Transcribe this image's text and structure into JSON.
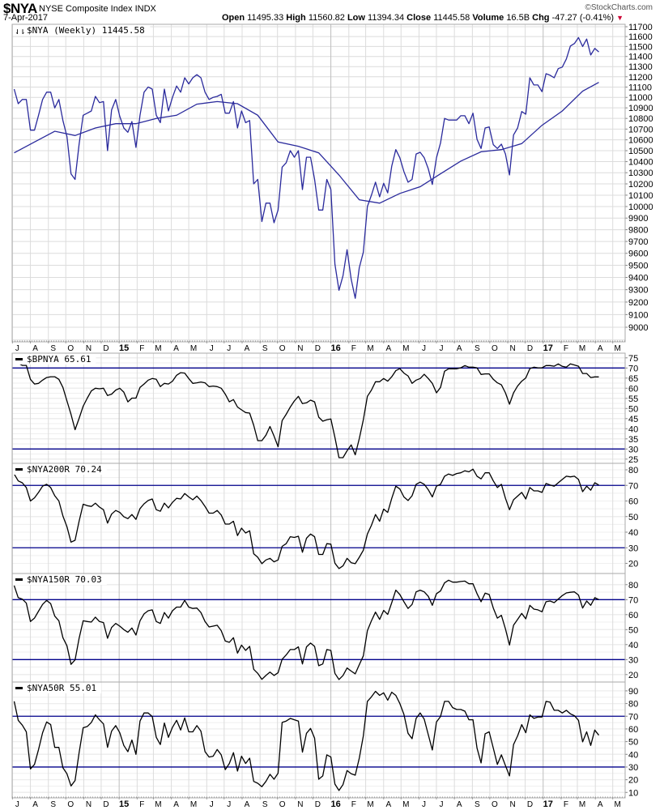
{
  "header": {
    "symbol": "$NYA",
    "name": "NYSE Composite Index  INDX",
    "watermark": "©StockCharts.com",
    "date": "7-Apr-2017",
    "quote": {
      "open_label": "Open",
      "open": "11495.33",
      "high_label": "High",
      "high": "11560.82",
      "low_label": "Low",
      "low": "11394.34",
      "close_label": "Close",
      "close": "11445.58",
      "volume_label": "Volume",
      "volume": "16.5B",
      "chg_label": "Chg",
      "chg": "-47.27 (-0.41%)",
      "chg_icon": "down-triangle-icon"
    }
  },
  "x_axis": {
    "frequency": "weekly",
    "first_week": "2014-07-04",
    "start_month": "2014-07",
    "month_labels": [
      "J",
      "A",
      "S",
      "O",
      "N",
      "D",
      "15",
      "F",
      "M",
      "A",
      "M",
      "J",
      "J",
      "A",
      "S",
      "O",
      "N",
      "D",
      "16",
      "F",
      "M",
      "A",
      "M",
      "J",
      "J",
      "A",
      "S",
      "O",
      "N",
      "D",
      "17",
      "F",
      "M",
      "A",
      "M"
    ]
  },
  "colors": {
    "price": "#2a2a9c",
    "ma": "#2a2a9c",
    "indicator": "#000000",
    "reference": "#00008b",
    "up_bar": "#000000",
    "down_bar": "#cc0033"
  },
  "chart_data": [
    {
      "type": "line",
      "legend": "$NYA (Weekly) 11445.58",
      "scale": "log",
      "ylim": [
        9000,
        11700
      ],
      "yticks": [
        "11700",
        "11600",
        "11500",
        "11400",
        "11300",
        "11200",
        "11100",
        "11000",
        "10900",
        "10800",
        "10700",
        "10600",
        "10500",
        "10400",
        "10300",
        "10200",
        "10100",
        "10000",
        "9900",
        "9800",
        "9700",
        "9600",
        "9500",
        "9400",
        "9300",
        "9200",
        "9100",
        "9000"
      ],
      "grid": true,
      "close": [
        11080,
        10940,
        10980,
        10980,
        10690,
        10690,
        10830,
        10980,
        11050,
        11050,
        10900,
        10980,
        10780,
        10630,
        10290,
        10240,
        10560,
        10830,
        10850,
        10870,
        11010,
        10950,
        10960,
        10500,
        10880,
        10980,
        10820,
        10710,
        10670,
        10770,
        10530,
        10830,
        11050,
        11100,
        11080,
        10830,
        10760,
        11080,
        10870,
        11000,
        11110,
        11050,
        11190,
        11130,
        11190,
        11220,
        11190,
        11050,
        10980,
        11000,
        11010,
        11030,
        10850,
        10850,
        10960,
        10710,
        10870,
        10760,
        10780,
        10200,
        10240,
        9870,
        10030,
        10030,
        9860,
        9970,
        10350,
        10390,
        10500,
        10440,
        10500,
        10150,
        10440,
        10440,
        10240,
        9970,
        9970,
        10240,
        10150,
        9510,
        9295,
        9415,
        9630,
        9385,
        9230,
        9480,
        9610,
        10000,
        10100,
        10215,
        10085,
        10205,
        10120,
        10360,
        10510,
        10435,
        10310,
        10215,
        10240,
        10470,
        10485,
        10435,
        10335,
        10195,
        10435,
        10570,
        10800,
        10785,
        10785,
        10785,
        10825,
        10825,
        10750,
        10850,
        10605,
        10520,
        10710,
        10720,
        10555,
        10520,
        10560,
        10470,
        10280,
        10645,
        10710,
        10865,
        10840,
        11190,
        11120,
        11120,
        11055,
        11230,
        11215,
        11190,
        11280,
        11295,
        11375,
        11505,
        11530,
        11590,
        11500,
        11575,
        11415,
        11480,
        11445.58
      ],
      "moving_average": [
        [
          "2014-07-04",
          10480
        ],
        [
          "2014-08-08",
          10580
        ],
        [
          "2014-09-12",
          10680
        ],
        [
          "2014-10-17",
          10640
        ],
        [
          "2014-11-21",
          10710
        ],
        [
          "2014-12-26",
          10750
        ],
        [
          "2015-01-30",
          10750
        ],
        [
          "2015-03-06",
          10800
        ],
        [
          "2015-04-10",
          10830
        ],
        [
          "2015-05-15",
          10935
        ],
        [
          "2015-06-19",
          10960
        ],
        [
          "2015-07-24",
          10940
        ],
        [
          "2015-08-28",
          10830
        ],
        [
          "2015-10-02",
          10580
        ],
        [
          "2015-11-06",
          10540
        ],
        [
          "2015-12-11",
          10480
        ],
        [
          "2016-01-15",
          10280
        ],
        [
          "2016-02-19",
          10060
        ],
        [
          "2016-03-25",
          10030
        ],
        [
          "2016-04-29",
          10115
        ],
        [
          "2016-06-03",
          10175
        ],
        [
          "2016-07-08",
          10290
        ],
        [
          "2016-08-12",
          10405
        ],
        [
          "2016-09-16",
          10490
        ],
        [
          "2016-10-21",
          10510
        ],
        [
          "2016-11-25",
          10565
        ],
        [
          "2016-12-30",
          10735
        ],
        [
          "2017-02-03",
          10870
        ],
        [
          "2017-03-10",
          11060
        ],
        [
          "2017-04-07",
          11145
        ]
      ]
    },
    {
      "type": "line",
      "legend": "$BPNYA 65.61",
      "ylim": [
        25,
        75
      ],
      "yticks": [
        "75",
        "70",
        "65",
        "60",
        "55",
        "50",
        "45",
        "40",
        "35",
        "30",
        "25"
      ],
      "reference_lines": [
        70,
        30
      ],
      "values": [
        null,
        72.4,
        71.3,
        71.3,
        64.4,
        62.1,
        62.4,
        64,
        65.3,
        65.7,
        65.7,
        64.4,
        60.4,
        53.7,
        47.1,
        39.5,
        45.1,
        51.1,
        55.1,
        58.7,
        60,
        59.7,
        60,
        56.4,
        57.1,
        59.1,
        60,
        58.1,
        53.3,
        55.1,
        55.1,
        60.4,
        62.1,
        64,
        64.8,
        64.4,
        60.8,
        62.4,
        62.1,
        63.5,
        66.4,
        67.7,
        67.5,
        64.8,
        62.4,
        62.7,
        63.1,
        62.7,
        60.8,
        61.1,
        60.8,
        60,
        57.1,
        53.3,
        54.4,
        50.7,
        49.3,
        48,
        47.7,
        41.7,
        34.1,
        34.1,
        36.8,
        41.1,
        36.4,
        31.1,
        44,
        47.1,
        50.7,
        53.7,
        56,
        52.4,
        52.8,
        54.1,
        53.3,
        45.7,
        43.7,
        44.4,
        44.8,
        35.7,
        25.7,
        25.7,
        29.1,
        32,
        27.1,
        35.1,
        44.4,
        56,
        59.1,
        63.2,
        63.2,
        64.8,
        63.5,
        65.7,
        68.7,
        69.7,
        67.5,
        66.1,
        62.4,
        64,
        64.8,
        66.9,
        64.8,
        62.4,
        57.7,
        60.4,
        68.4,
        69.6,
        69.6,
        69.6,
        70.1,
        71.2,
        70.4,
        70.4,
        70.1,
        66.8,
        67.1,
        67.1,
        64.4,
        62.7,
        61.7,
        57.7,
        52.1,
        57.7,
        61.1,
        63.5,
        65.1,
        69.7,
        70.4,
        70.1,
        70.1,
        71.2,
        71.2,
        70.9,
        72,
        70.8,
        70.4,
        72,
        71.5,
        70.9,
        67.3,
        67.3,
        65.3,
        65.6,
        65.61
      ]
    },
    {
      "type": "line",
      "legend": "$NYA200R 70.24",
      "ylim": [
        20,
        80
      ],
      "yticks": [
        "80",
        "70",
        "60",
        "50",
        "40",
        "30",
        "20"
      ],
      "reference_lines": [
        70,
        30
      ],
      "values": [
        77.3,
        72.9,
        71.7,
        68.6,
        60,
        62,
        65.5,
        69.5,
        70.7,
        68.6,
        63.4,
        60,
        50.4,
        43.5,
        33.6,
        34.8,
        47,
        57.9,
        57,
        56.5,
        58.6,
        56.1,
        54.4,
        45.8,
        51.6,
        53.9,
        52.7,
        49.9,
        48.7,
        51.3,
        48.2,
        55.1,
        58.2,
        60.3,
        61.3,
        54.4,
        53.4,
        58.6,
        55.6,
        59.1,
        61.7,
        61.3,
        64.8,
        62.6,
        60.8,
        63.1,
        60.3,
        56.5,
        52.2,
        52.2,
        53.9,
        51,
        45.2,
        45.2,
        47,
        37.8,
        42.6,
        39.5,
        40.9,
        26.2,
        23.9,
        19.8,
        22.2,
        23.2,
        21,
        22.2,
        30.9,
        32.6,
        37.1,
        36.6,
        37.4,
        27.1,
        36.1,
        38.8,
        37.1,
        25.7,
        25.7,
        32.6,
        32.3,
        20.1,
        16.7,
        18.4,
        23.2,
        20.4,
        19.8,
        23.9,
        28.4,
        38.8,
        44.4,
        51.3,
        47,
        54.8,
        52.7,
        61.7,
        69.5,
        67.7,
        62.6,
        60.3,
        63.4,
        70.7,
        72.1,
        70.7,
        67.2,
        62.6,
        69.5,
        70.7,
        75.9,
        77.3,
        76.4,
        77.6,
        78.1,
        79.4,
        78.7,
        80.4,
        75.9,
        74.2,
        78.1,
        78.1,
        72.9,
        68.6,
        70.7,
        61.7,
        54.4,
        60.8,
        63.1,
        65.5,
        61.3,
        68.6,
        66.5,
        66.5,
        65.5,
        71.2,
        70.3,
        69.5,
        71.7,
        73.8,
        75.9,
        75.5,
        75.9,
        73.8,
        66,
        69.5,
        66.9,
        71.7,
        70.24
      ]
    },
    {
      "type": "line",
      "legend": "$NYA150R 70.03",
      "ylim": [
        20,
        80
      ],
      "yticks": [
        "80",
        "70",
        "60",
        "50",
        "40",
        "30",
        "20"
      ],
      "reference_lines": [
        70,
        30
      ],
      "values": [
        79.4,
        71.3,
        70.4,
        67.7,
        55.4,
        57.7,
        62.3,
        66.8,
        69.5,
        67.3,
        59,
        55.9,
        44.6,
        39.2,
        26.8,
        29.8,
        44.2,
        55.9,
        55.4,
        55,
        58.3,
        55.4,
        54.7,
        44.2,
        51.4,
        54.1,
        52.3,
        50,
        48.2,
        51.1,
        46.4,
        55.9,
        60.5,
        62.6,
        63.2,
        55.4,
        54.1,
        61.4,
        57.7,
        62.6,
        65,
        65,
        69.5,
        65,
        64.1,
        64.4,
        61.4,
        55.4,
        51.8,
        52.3,
        52.9,
        49.3,
        42.4,
        41.5,
        44.6,
        34.3,
        39.7,
        36.1,
        38.8,
        23.5,
        20.8,
        16.8,
        19.4,
        21.7,
        19.4,
        21.2,
        30.2,
        33.1,
        36.7,
        36.7,
        38.5,
        27.1,
        38.5,
        41,
        38.8,
        25.9,
        27.1,
        36.7,
        36.1,
        20.8,
        16.7,
        19.4,
        24.4,
        22.3,
        20.5,
        26.6,
        32.5,
        49.3,
        55.9,
        61.7,
        56.8,
        62.8,
        60.1,
        68,
        76.3,
        73.4,
        68.6,
        64.1,
        66.8,
        75.2,
        76.3,
        75.2,
        72.2,
        66.2,
        74,
        75.8,
        81.2,
        83,
        81.7,
        81.7,
        82.1,
        82.4,
        80.6,
        80.6,
        74,
        68.6,
        74.3,
        73.4,
        64.4,
        57.7,
        59.5,
        50.5,
        39.7,
        52.9,
        56.8,
        60.8,
        57.2,
        66.2,
        63.7,
        63.2,
        61.9,
        68.6,
        69.1,
        68,
        70.4,
        72.7,
        74.5,
        74.9,
        75.2,
        73.1,
        64.4,
        69.1,
        66.2,
        71.3,
        70.03
      ]
    },
    {
      "type": "line",
      "legend": "$NYA50R 55.01",
      "ylim": [
        10,
        90
      ],
      "yticks": [
        "90",
        "80",
        "70",
        "60",
        "50",
        "40",
        "30",
        "20",
        "10"
      ],
      "reference_lines": [
        70,
        30
      ],
      "values": [
        81.7,
        66.8,
        63,
        57.7,
        28.5,
        32.1,
        43.8,
        57,
        65.5,
        63.4,
        45.5,
        45.5,
        29.4,
        24.7,
        15.1,
        19.4,
        41.3,
        60.9,
        61.9,
        65.1,
        71.1,
        67.2,
        64,
        45.5,
        58.3,
        62.6,
        57,
        47,
        42.1,
        51.3,
        40,
        66.2,
        72.6,
        72.6,
        69.8,
        53.4,
        47.7,
        64.7,
        53.4,
        61.3,
        66.8,
        59.1,
        68.7,
        57.7,
        57.7,
        62.6,
        58.3,
        42.1,
        37.9,
        38.5,
        43.8,
        39.6,
        27.9,
        32.8,
        41.3,
        26.8,
        38.5,
        32.8,
        37,
        18.7,
        17.2,
        14.5,
        18.7,
        24.3,
        20.4,
        25.1,
        65.1,
        66.2,
        68.3,
        67.2,
        66.2,
        41.7,
        56.6,
        60.4,
        52.8,
        20.4,
        23,
        39.6,
        37.9,
        16.6,
        11.5,
        16.2,
        27.2,
        24.7,
        23.6,
        37,
        54.5,
        81.7,
        85.3,
        89.6,
        86.4,
        88.5,
        82.6,
        88.9,
        86.4,
        80,
        71.5,
        56.6,
        52.3,
        68.3,
        72.6,
        67.7,
        55.5,
        43.4,
        65.5,
        69.8,
        81.7,
        81.7,
        76.8,
        75.3,
        75.3,
        74,
        67.2,
        67.2,
        44.9,
        33.2,
        56.2,
        57.7,
        44.9,
        32.1,
        39.6,
        31.1,
        23,
        47.7,
        54.5,
        63.4,
        57,
        71.1,
        68.3,
        69.4,
        69.4,
        81.7,
        81.1,
        74.7,
        74.7,
        72.6,
        74.7,
        71.9,
        70.4,
        66.8,
        49.8,
        57.7,
        47,
        59.1,
        55.01
      ]
    }
  ]
}
